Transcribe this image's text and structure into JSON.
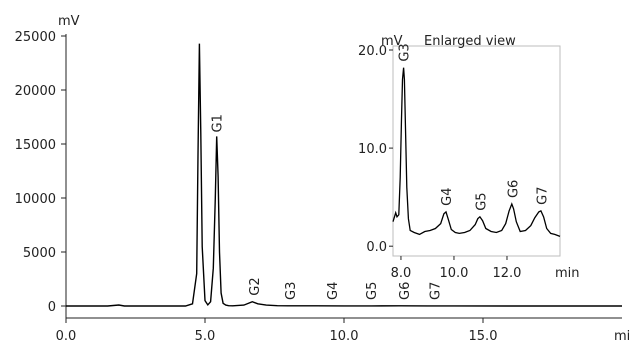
{
  "chart_data": [
    {
      "type": "line",
      "xlabel": "min",
      "ylabel": "mV",
      "xlim": [
        0.0,
        20.0
      ],
      "ylim": [
        -1200,
        25000
      ],
      "xticks": [
        0.0,
        5.0,
        10.0,
        15.0
      ],
      "xtick_labels": [
        "0.0",
        "5.0",
        "10.0",
        "15.0"
      ],
      "yticks": [
        0,
        5000,
        10000,
        15000,
        20000,
        25000
      ],
      "ytick_labels": [
        "0",
        "5000",
        "10000",
        "15000",
        "20000",
        "25000"
      ],
      "grid": false,
      "series": [
        {
          "x": [
            0.0,
            1.5,
            1.9,
            2.1,
            2.5,
            4.3,
            4.55,
            4.7,
            4.75,
            4.8,
            4.85,
            4.9,
            5.0,
            5.1,
            5.2,
            5.3,
            5.37,
            5.42,
            5.47,
            5.52,
            5.58,
            5.65,
            5.75,
            5.85,
            6.0,
            6.4,
            6.7,
            6.9,
            7.2,
            7.6,
            8.0,
            9.0,
            10.0,
            11.0,
            12.0,
            13.0,
            14.0,
            16.0,
            18.0,
            20.0
          ],
          "y": [
            0,
            0,
            90,
            0,
            0,
            0,
            200,
            3000,
            14000,
            24300,
            16000,
            5500,
            500,
            100,
            400,
            3500,
            10000,
            15700,
            12000,
            5000,
            1200,
            250,
            80,
            30,
            20,
            80,
            400,
            200,
            80,
            30,
            20,
            15,
            10,
            10,
            15,
            10,
            5,
            0,
            0,
            0
          ]
        }
      ],
      "annotations": [
        {
          "label": "G1",
          "x": 5.45,
          "y": 15700
        },
        {
          "label": "G2",
          "x": 6.8,
          "y": 400
        },
        {
          "label": "G3",
          "x": 8.1,
          "y": 0
        },
        {
          "label": "G4",
          "x": 9.6,
          "y": 0
        },
        {
          "label": "G5",
          "x": 11.0,
          "y": 0
        },
        {
          "label": "G6",
          "x": 12.2,
          "y": 0
        },
        {
          "label": "G7",
          "x": 13.3,
          "y": 0
        }
      ]
    },
    {
      "type": "line",
      "title": "Enlarged view",
      "xlabel": "min",
      "ylabel": "mV",
      "xlim": [
        7.7,
        14.0
      ],
      "ylim": [
        -1.0,
        20.0
      ],
      "xticks": [
        8.0,
        10.0,
        12.0
      ],
      "xtick_labels": [
        "8.0",
        "10.0",
        "12.0"
      ],
      "yticks": [
        0.0,
        10.0,
        20.0
      ],
      "ytick_labels": [
        "0.0",
        "10.0",
        "20.0"
      ],
      "grid": false,
      "series": [
        {
          "x": [
            7.7,
            7.8,
            7.85,
            7.92,
            7.97,
            8.02,
            8.06,
            8.1,
            8.13,
            8.17,
            8.22,
            8.28,
            8.35,
            8.5,
            8.7,
            8.9,
            9.1,
            9.3,
            9.5,
            9.62,
            9.7,
            9.78,
            9.9,
            10.05,
            10.2,
            10.4,
            10.6,
            10.8,
            10.9,
            10.98,
            11.08,
            11.2,
            11.4,
            11.6,
            11.8,
            11.95,
            12.08,
            12.18,
            12.25,
            12.35,
            12.5,
            12.7,
            12.9,
            13.05,
            13.2,
            13.28,
            13.38,
            13.5,
            13.65,
            13.8,
            14.0
          ],
          "y": [
            2.5,
            3.4,
            3.0,
            3.2,
            7.0,
            13.0,
            17.0,
            18.2,
            17.0,
            12.0,
            6.0,
            2.8,
            1.6,
            1.4,
            1.2,
            1.5,
            1.6,
            1.8,
            2.3,
            3.3,
            3.5,
            2.8,
            1.7,
            1.4,
            1.3,
            1.4,
            1.6,
            2.2,
            2.8,
            3.0,
            2.6,
            1.8,
            1.5,
            1.4,
            1.6,
            2.3,
            3.6,
            4.3,
            3.8,
            2.5,
            1.5,
            1.6,
            2.1,
            2.9,
            3.5,
            3.6,
            3.0,
            1.8,
            1.3,
            1.2,
            1.0
          ]
        }
      ],
      "annotations": [
        {
          "label": "G3",
          "x": 8.1,
          "y": 18.2
        },
        {
          "label": "G4",
          "x": 9.7,
          "y": 3.5
        },
        {
          "label": "G5",
          "x": 11.0,
          "y": 3.0
        },
        {
          "label": "G6",
          "x": 12.2,
          "y": 4.3
        },
        {
          "label": "G7",
          "x": 13.3,
          "y": 3.6
        }
      ]
    }
  ]
}
